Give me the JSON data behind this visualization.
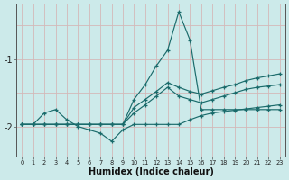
{
  "xlabel": "Humidex (Indice chaleur)",
  "background_color": "#cceaea",
  "grid_color": "#b8d8d8",
  "line_color": "#1a6b6b",
  "xlim": [
    -0.5,
    23.5
  ],
  "ylim": [
    -2.45,
    -0.18
  ],
  "yticks": [
    -2,
    -1
  ],
  "xticks": [
    0,
    1,
    2,
    3,
    4,
    5,
    6,
    7,
    8,
    9,
    10,
    11,
    12,
    13,
    14,
    15,
    16,
    17,
    18,
    19,
    20,
    21,
    22,
    23
  ],
  "lines": [
    {
      "x": [
        0,
        1,
        2,
        3,
        4,
        5,
        6,
        7,
        8,
        9,
        10,
        11,
        12,
        13,
        14,
        15,
        16,
        17,
        18,
        19,
        20,
        21,
        22,
        23
      ],
      "y": [
        -1.97,
        -1.97,
        -1.97,
        -1.97,
        -1.97,
        -1.97,
        -1.97,
        -1.97,
        -1.97,
        -1.97,
        -1.6,
        -1.38,
        -1.1,
        -0.87,
        -0.3,
        -0.72,
        -1.75,
        -1.75,
        -1.75,
        -1.75,
        -1.75,
        -1.75,
        -1.75,
        -1.75
      ]
    },
    {
      "x": [
        0,
        1,
        2,
        3,
        4,
        5,
        6,
        7,
        8,
        9,
        10,
        11,
        12,
        13,
        14,
        15,
        16,
        17,
        18,
        19,
        20,
        21,
        22,
        23
      ],
      "y": [
        -1.97,
        -1.97,
        -1.97,
        -1.97,
        -1.97,
        -1.97,
        -1.97,
        -1.97,
        -1.97,
        -1.97,
        -1.8,
        -1.68,
        -1.55,
        -1.42,
        -1.55,
        -1.6,
        -1.65,
        -1.6,
        -1.55,
        -1.5,
        -1.45,
        -1.42,
        -1.4,
        -1.38
      ]
    },
    {
      "x": [
        0,
        1,
        2,
        3,
        4,
        5,
        6,
        7,
        8,
        9,
        10,
        11,
        12,
        13,
        14,
        15,
        16,
        17,
        18,
        19,
        20,
        21,
        22,
        23
      ],
      "y": [
        -1.97,
        -1.97,
        -1.97,
        -1.97,
        -1.97,
        -1.97,
        -1.97,
        -1.97,
        -1.97,
        -1.97,
        -1.72,
        -1.6,
        -1.48,
        -1.35,
        -1.42,
        -1.48,
        -1.52,
        -1.47,
        -1.42,
        -1.38,
        -1.32,
        -1.28,
        -1.25,
        -1.22
      ]
    },
    {
      "x": [
        0,
        1,
        2,
        3,
        4,
        5,
        6,
        7,
        8,
        9,
        10,
        11,
        12,
        13,
        14,
        15,
        16,
        17,
        18,
        19,
        20,
        21,
        22,
        23
      ],
      "y": [
        -1.97,
        -1.97,
        -1.8,
        -1.75,
        -1.9,
        -2.0,
        -2.05,
        -2.1,
        -2.22,
        -2.05,
        -1.97,
        -1.97,
        -1.97,
        -1.97,
        -1.97,
        -1.9,
        -1.84,
        -1.8,
        -1.78,
        -1.76,
        -1.74,
        -1.72,
        -1.7,
        -1.68
      ]
    }
  ]
}
